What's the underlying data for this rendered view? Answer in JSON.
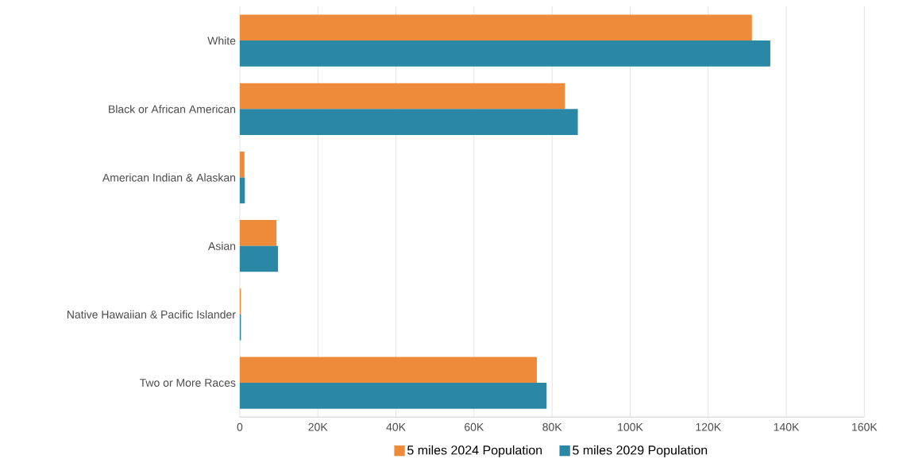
{
  "chart_data": {
    "type": "bar",
    "orientation": "horizontal",
    "categories": [
      "White",
      "Black or African American",
      "American Indian & Alaskan",
      "Asian",
      "Native Hawaiian & Pacific Islander",
      "Two or More Races"
    ],
    "series": [
      {
        "name": "5 miles 2024 Population",
        "color": "#ed8b3a",
        "values": [
          131200,
          83300,
          1200,
          9400,
          300,
          76100
        ]
      },
      {
        "name": "5 miles 2029 Population",
        "color": "#2a88a6",
        "values": [
          135900,
          86600,
          1300,
          9800,
          300,
          78600
        ]
      }
    ],
    "xlim": [
      0,
      160000
    ],
    "xticks": [
      0,
      {
        "value": 20000,
        "label": "20K"
      },
      {
        "value": 40000,
        "label": "40K"
      },
      {
        "value": 60000,
        "label": "60K"
      },
      {
        "value": 80000,
        "label": "80K"
      },
      {
        "value": 100000,
        "label": "100K"
      },
      {
        "value": 120000,
        "label": "120K"
      },
      {
        "value": 140000,
        "label": "140K"
      },
      {
        "value": 160000,
        "label": "160K"
      }
    ],
    "grid": "x",
    "legend": "bottom"
  }
}
